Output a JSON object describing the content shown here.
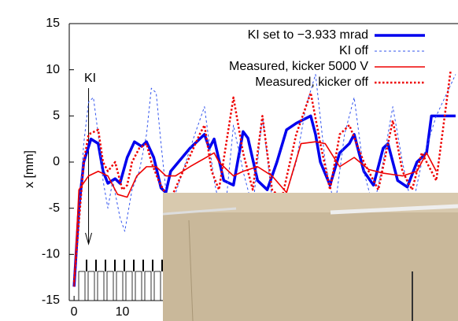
{
  "chart_data": {
    "type": "line",
    "ylabel": "x [mm]",
    "annotation": "KI",
    "xlim": [
      -1,
      79.5
    ],
    "xticks": [
      0,
      10
    ],
    "ylim": [
      -15,
      15
    ],
    "yticks": [
      -15,
      -10,
      -5,
      0,
      5,
      10,
      15
    ],
    "legend": "upper right",
    "series": [
      {
        "name": "KI set to −3.933 mrad",
        "color": "#0000ee",
        "style": "solid",
        "width": 3.5,
        "x": [
          0,
          1,
          2,
          3.5,
          5,
          6,
          7,
          8.5,
          9.5,
          11,
          12.5,
          14,
          15,
          16.5,
          18,
          19,
          20,
          24,
          27,
          28,
          29,
          31,
          33,
          35,
          36,
          38,
          40,
          42,
          44,
          46,
          49,
          50,
          51,
          53,
          55,
          57,
          58,
          60,
          62,
          64,
          65,
          67,
          69,
          71,
          73,
          74,
          79
        ],
        "values": [
          -13.5,
          -5,
          0,
          2.5,
          2,
          -1,
          -2.3,
          -1.8,
          -2.3,
          0.5,
          2.2,
          1.7,
          2.2,
          0.5,
          -2.8,
          -3.3,
          -1,
          1.5,
          3,
          1.5,
          2.5,
          -2,
          -2.5,
          3.3,
          2.6,
          -2,
          -3,
          0,
          3.5,
          4.2,
          5,
          3,
          0,
          -2.5,
          1,
          2,
          3,
          -1,
          -2.5,
          1.5,
          2,
          -2,
          -2.7,
          0,
          1,
          5,
          5
        ]
      },
      {
        "name": "KI off",
        "color": "#3355ee",
        "style": "dashed",
        "width": 1,
        "x": [
          0,
          2,
          3,
          4,
          5,
          6,
          7,
          8,
          9.5,
          10.5,
          12,
          13.5,
          15,
          16,
          17,
          18,
          19,
          20,
          25,
          27,
          29,
          31,
          33,
          35,
          37,
          39,
          41,
          43,
          46,
          48,
          50,
          52,
          54,
          56,
          58,
          60,
          62,
          64,
          66,
          68,
          70,
          72,
          75,
          79
        ],
        "values": [
          -13,
          2,
          6.5,
          7,
          3,
          -2,
          -5,
          -2,
          -6,
          -7.5,
          -3,
          -1,
          3,
          8,
          7.5,
          2,
          -3,
          -5,
          3,
          6,
          -2,
          -7,
          4,
          -1,
          -5,
          5,
          -4,
          -5,
          0,
          6,
          9.5,
          0,
          -5,
          3,
          7,
          -1,
          -5,
          0,
          6,
          0,
          -5,
          0,
          5,
          9.5
        ]
      },
      {
        "name": "Measured, kicker 5000 V",
        "color": "#ee0000",
        "style": "solid",
        "width": 1.6,
        "x": [
          0,
          1,
          3,
          5,
          7,
          9,
          11,
          13,
          15,
          17,
          19,
          21,
          24,
          29,
          30,
          33,
          35,
          38,
          41,
          44,
          47,
          50,
          52,
          55,
          58,
          61,
          64,
          68,
          71,
          73,
          75
        ],
        "values": [
          -13.5,
          -3,
          -1.5,
          -1,
          -1.5,
          -3.5,
          -3.8,
          -1.5,
          -0.5,
          -0.5,
          -1.5,
          -1.5,
          -0.5,
          1,
          0,
          -1.5,
          -1,
          -0.5,
          -1.5,
          -3.3,
          2,
          2.2,
          2,
          -0.5,
          0.5,
          -0.8,
          -1.2,
          -1.5,
          -1,
          1,
          -1
        ]
      },
      {
        "name": "Measured, kicker off",
        "color": "#ee0000",
        "style": "dotted",
        "width": 2.5,
        "x": [
          0,
          2,
          3,
          5,
          6,
          7,
          8.5,
          10,
          11,
          12,
          13.5,
          15,
          16,
          17.5,
          19,
          20,
          26,
          27,
          28.5,
          30,
          33,
          35,
          37,
          39,
          41,
          43,
          46,
          49,
          51,
          53,
          55,
          57,
          60,
          63,
          66,
          68,
          70,
          72,
          75,
          78
        ],
        "values": [
          -13,
          0,
          3,
          3.5,
          0,
          -1,
          0,
          -3,
          -2.5,
          0,
          1.5,
          2,
          0,
          -2,
          -3.5,
          -4,
          3,
          4,
          -1,
          -3,
          7,
          1,
          -3,
          5,
          -3,
          -4,
          3,
          7.5,
          2,
          -3,
          3,
          4,
          0,
          -3,
          4.5,
          -1,
          -3,
          1,
          -2,
          10
        ]
      }
    ]
  }
}
